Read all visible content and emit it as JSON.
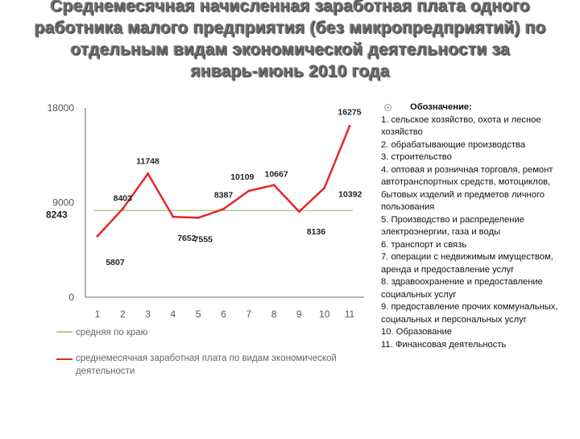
{
  "title": {
    "line1": "Среднемесячная начисленная заработная плата одного",
    "line2": "работника малого предприятия (без микропредприятий) по",
    "line3": "отдельным видам экономической деятельности за",
    "line4": "январь-июнь 2010 года"
  },
  "legend_panel": {
    "heading": "Обозначение:",
    "items": [
      "1. сельское хозяйство, охота и лесное хозяйство",
      "2. обрабатывающие производства",
      "3. строительство",
      "4. оптовая и розничная торговля, ремонт автотранспортных средств, мотоциклов, бытовых изделий и предметов личного пользования",
      "5. Производство и распределение электроэнергии, газа и воды",
      "6. транспорт и связь",
      "7. операции с недвижимым имуществом, аренда и предоставление услуг",
      "8. здравоохранение и предоставление социальных услуг",
      "9. предоставление прочих коммунальных, социальных и персональных услуг",
      "10. Образование",
      "11. Финансовая деятельность"
    ]
  },
  "chart_data": {
    "type": "line",
    "x": [
      1,
      2,
      3,
      4,
      5,
      6,
      7,
      8,
      9,
      10,
      11
    ],
    "ylim": [
      0,
      18000
    ],
    "yticks": [
      0,
      9000,
      18000
    ],
    "series": [
      {
        "name": "средняя по краю",
        "color": "#b5c98e",
        "values": [
          8243,
          8243,
          8243,
          8243,
          8243,
          8243,
          8243,
          8243,
          8243,
          8243,
          8243
        ],
        "label": "8243"
      },
      {
        "name": "среднемесячная заработная плата по видам экономической деятельности",
        "color": "#e8262a",
        "values": [
          5807,
          8403,
          11748,
          7652,
          7555,
          8387,
          10109,
          10667,
          8136,
          10392,
          16275
        ],
        "labels": [
          "5807",
          "8403",
          "11748",
          "7652",
          "7555",
          "8387",
          "10109",
          "10667",
          "8136",
          "10392",
          "16275"
        ]
      }
    ],
    "legend_position": "bottom-left"
  }
}
